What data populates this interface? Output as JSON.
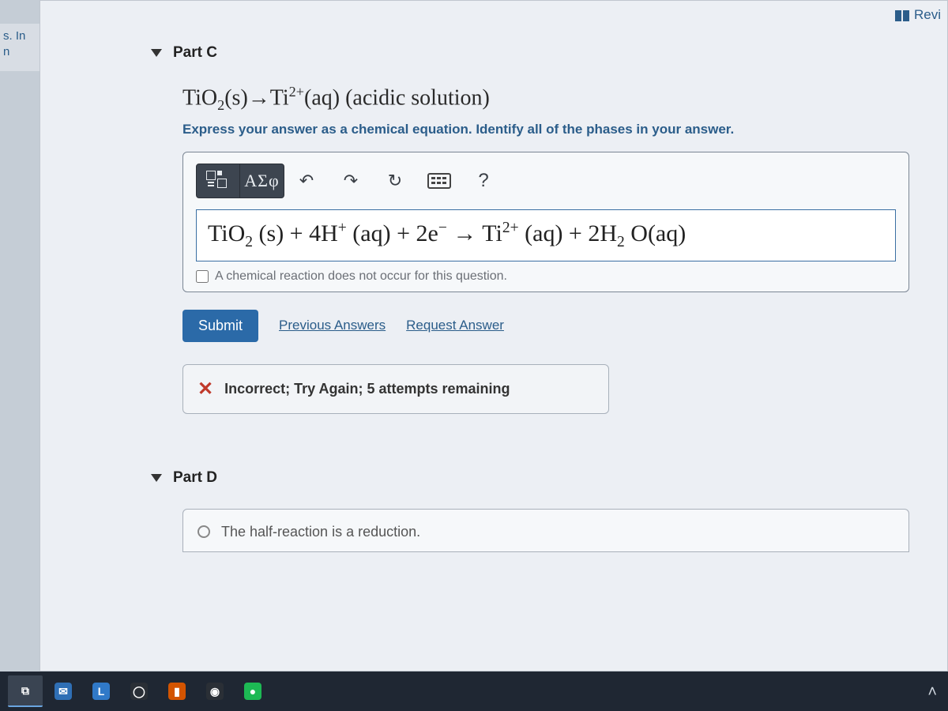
{
  "colors": {
    "page_bg": "#eceff4",
    "outer_bg": "#c5cdd6",
    "link": "#2b5d8a",
    "submit_bg": "#2b6aa8",
    "error": "#c0392b",
    "taskbar": "#1f2733",
    "input_border": "#3b6fa3"
  },
  "side_snip": {
    "line1": "s. In",
    "line2": "n"
  },
  "top_right": {
    "label": "Revi"
  },
  "partC": {
    "heading": "Part C",
    "equation_html": "TiO<span class='sub'>2</span>(s)→Ti<span class='sup'>2+</span>(aq) (acidic solution)",
    "instruction": "Express your answer as a chemical equation. Identify all of the phases in your answer.",
    "greek_label": "ΑΣφ",
    "help_label": "?",
    "answer_html": "TiO<span class='sub'>2</span> (s) + 4H<span class='sup'>+</span> (aq) + 2e<span class='sup'>−</span> → Ti<span class='sup'>2+</span> (aq) + 2H<span class='sub'>2</span> O(aq)",
    "no_rxn_label": "A chemical reaction does not occur for this question.",
    "no_rxn_checked": false,
    "submit_label": "Submit",
    "prev_answers_label": "Previous Answers",
    "request_answer_label": "Request Answer",
    "feedback_text": "Incorrect; Try Again; 5 attempts remaining"
  },
  "partD": {
    "heading": "Part D",
    "option_text": "The half-reaction is a reduction."
  },
  "taskbar": {
    "items": [
      {
        "name": "store-icon",
        "glyph": "⧉",
        "bg": "#3a4452"
      },
      {
        "name": "mail-icon",
        "glyph": "✉",
        "bg": "#2f6fb5"
      },
      {
        "name": "letter-l-icon",
        "glyph": "L",
        "bg": "#3079c8"
      },
      {
        "name": "cortana-icon",
        "glyph": "◯",
        "bg": "#2a2f36"
      },
      {
        "name": "office-icon",
        "glyph": "▮",
        "bg": "#d35400"
      },
      {
        "name": "chrome-icon",
        "glyph": "◉",
        "bg": "#2a2f36"
      },
      {
        "name": "spotify-icon",
        "glyph": "●",
        "bg": "#1db954"
      }
    ],
    "tray_chevron": "˄"
  }
}
